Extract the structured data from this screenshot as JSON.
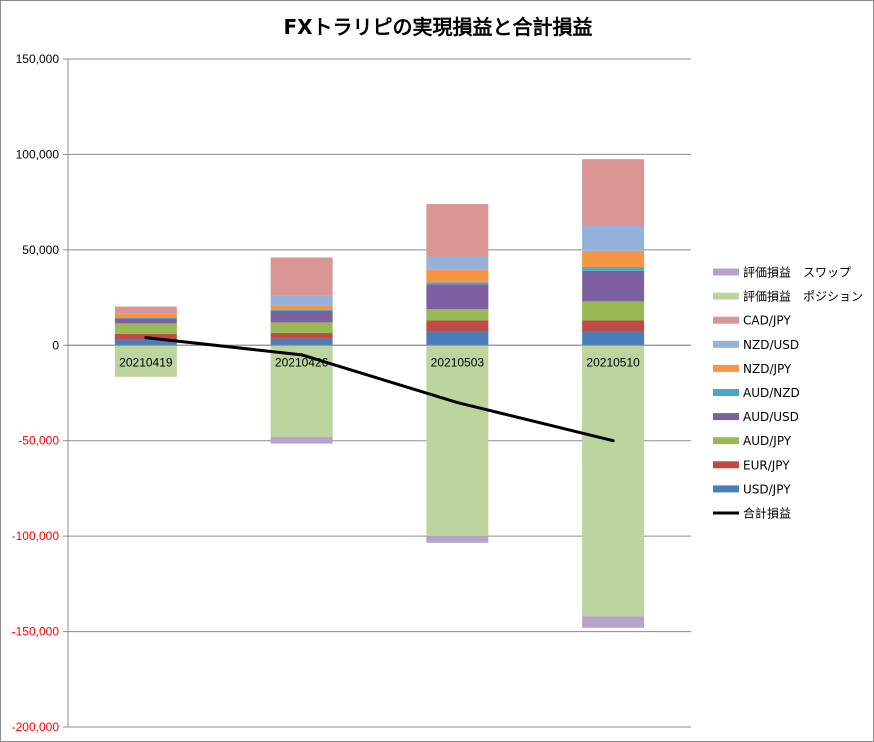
{
  "chart_data": {
    "type": "bar",
    "stacked": true,
    "title": "FXトラリピの実現損益と合計損益",
    "categories": [
      "20210419",
      "20210426",
      "20210503",
      "20210510"
    ],
    "ylim": [
      -200000,
      150000
    ],
    "yticks": [
      150000,
      100000,
      50000,
      0,
      -50000,
      -100000,
      -150000,
      -200000
    ],
    "ytick_labels": [
      "150,000",
      "100,000",
      "50,000",
      "0",
      "-50,000",
      "-100,000",
      "-150,000",
      "-200,000"
    ],
    "negative_tick_color": "#ff0000",
    "grid": true,
    "legend_position": "right",
    "series": [
      {
        "name": "USD/JPY",
        "color": "#4a7ebb",
        "values": [
          3000,
          3500,
          7000,
          7000
        ]
      },
      {
        "name": "EUR/JPY",
        "color": "#be4b48",
        "values": [
          3000,
          3000,
          6000,
          6000
        ]
      },
      {
        "name": "AUD/JPY",
        "color": "#98b954",
        "values": [
          5500,
          5500,
          6000,
          10000
        ]
      },
      {
        "name": "AUD/USD",
        "color": "#7d60a0",
        "values": [
          2500,
          6000,
          13000,
          16000
        ]
      },
      {
        "name": "AUD/NZD",
        "color": "#46aac5",
        "values": [
          300,
          500,
          1000,
          2000
        ]
      },
      {
        "name": "NZD/JPY",
        "color": "#f59646",
        "values": [
          2500,
          2500,
          6500,
          8500
        ]
      },
      {
        "name": "NZD/USD",
        "color": "#94b2db",
        "values": [
          0,
          5000,
          7000,
          13000
        ]
      },
      {
        "name": "CAD/JPY",
        "color": "#d99694",
        "values": [
          3500,
          20000,
          27500,
          35000
        ]
      },
      {
        "name": "評価損益　ポジション",
        "color": "#bcd49d",
        "values": [
          -16500,
          -48000,
          -100000,
          -142000
        ]
      },
      {
        "name": "評価損益　スワップ",
        "color": "#b7a3ca",
        "values": [
          0,
          -3500,
          -3500,
          -6000
        ]
      }
    ],
    "line_series": {
      "name": "合計損益",
      "color": "#000000",
      "values": [
        4000,
        -5000,
        -30000,
        -50000
      ]
    },
    "legend_order": [
      "評価損益　スワップ",
      "評価損益　ポジション",
      "CAD/JPY",
      "NZD/USD",
      "NZD/JPY",
      "AUD/NZD",
      "AUD/USD",
      "AUD/JPY",
      "EUR/JPY",
      "USD/JPY",
      "合計損益"
    ]
  }
}
